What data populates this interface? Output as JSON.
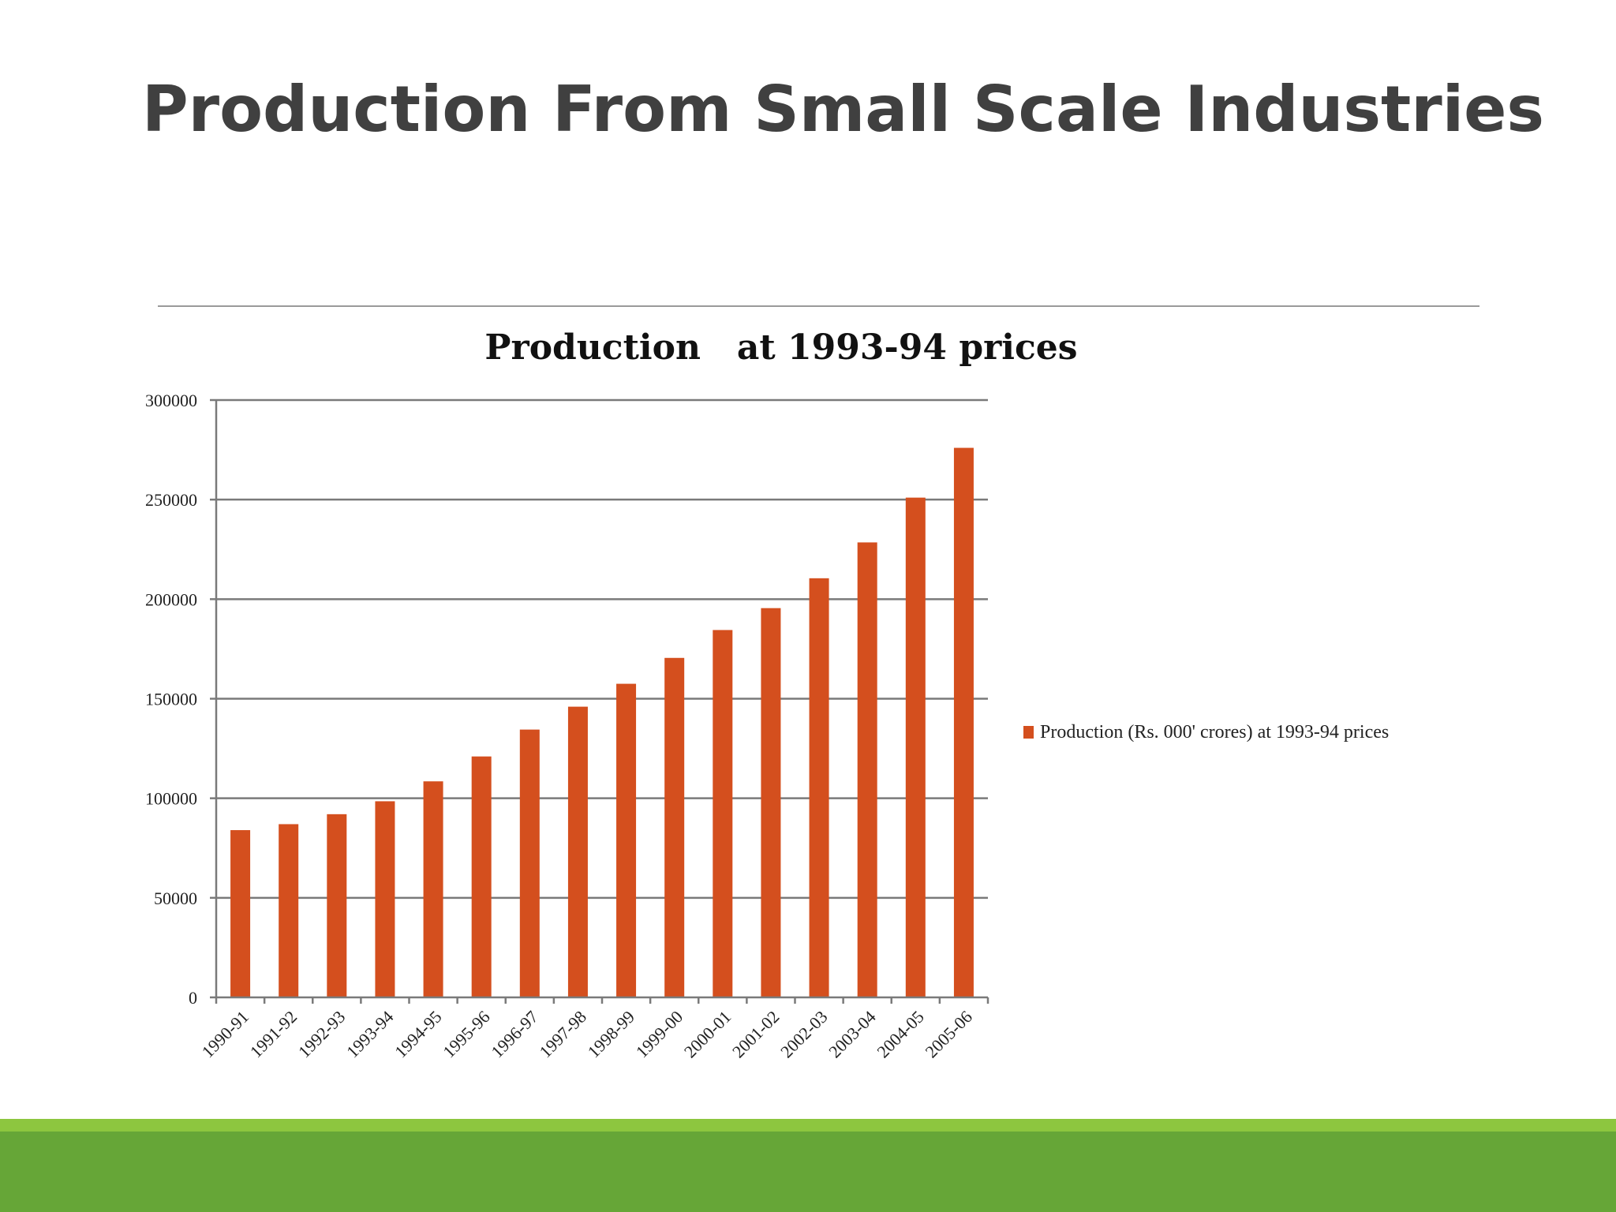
{
  "slide": {
    "title": "Production From Small Scale Industries"
  },
  "colors": {
    "bar": "#d44f1e",
    "grid": "#7a7a7a",
    "footer_light": "#8dc63f",
    "footer_dark": "#66a637"
  },
  "chart_data": {
    "type": "bar",
    "title": "Production   at 1993-94 prices",
    "xlabel": "",
    "ylabel": "",
    "ylim": [
      0,
      300000
    ],
    "yticks": [
      0,
      50000,
      100000,
      150000,
      200000,
      250000,
      300000
    ],
    "ytick_labels": [
      "0",
      "50000",
      "100000",
      "150000",
      "200000",
      "250000",
      "300000"
    ],
    "grid": true,
    "legend_position": "right",
    "categories": [
      "1990-91",
      "1991-92",
      "1992-93",
      "1993-94",
      "1994-95",
      "1995-96",
      "1996-97",
      "1997-98",
      "1998-99",
      "1999-00",
      "2000-01",
      "2001-02",
      "2002-03",
      "2003-04",
      "2004-05",
      "2005-06"
    ],
    "series": [
      {
        "name": "Production (Rs. 000' crores) at 1993-94 prices",
        "values": [
          84000,
          87000,
          92000,
          98500,
          108500,
          121000,
          134500,
          146000,
          157500,
          170500,
          184500,
          195500,
          210500,
          228500,
          251000,
          276000
        ]
      }
    ]
  }
}
